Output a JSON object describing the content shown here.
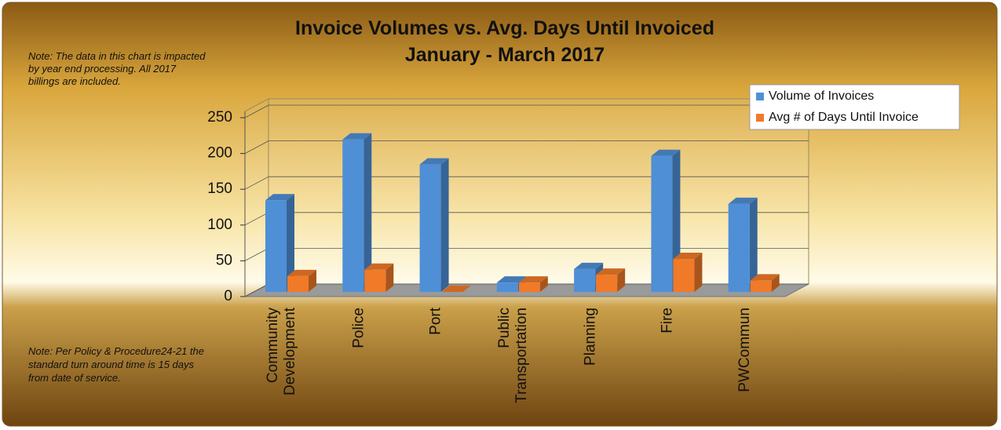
{
  "chart_data": {
    "type": "bar3d",
    "title": [
      "Invoice Volumes vs. Avg. Days Until Invoiced",
      "January - March 2017"
    ],
    "notes": [
      "Note: The data in this chart is impacted",
      "by year end processing. All 2017",
      "billings are included."
    ],
    "notes2": [
      "Note: Per Policy  & Procedure24-21 the",
      "standard turn around time is 15 days",
      "from date of service."
    ],
    "categories": [
      "Community Development",
      "Police",
      "Port",
      "Public Transportation",
      "Planning",
      "Fire",
      "PWCommun"
    ],
    "series": [
      {
        "name": "Volume of Invoices",
        "color": "#4f8fd6",
        "values": [
          128,
          213,
          178,
          13,
          32,
          190,
          123
        ]
      },
      {
        "name": "Avg # of Days Until Invoice",
        "color": "#f07a28",
        "values": [
          22,
          31,
          0,
          13,
          24,
          46,
          16
        ]
      }
    ],
    "ylim": [
      0,
      250
    ],
    "yticks": [
      0,
      50,
      100,
      150,
      200,
      250
    ],
    "grid": true,
    "legend": "top-right"
  }
}
